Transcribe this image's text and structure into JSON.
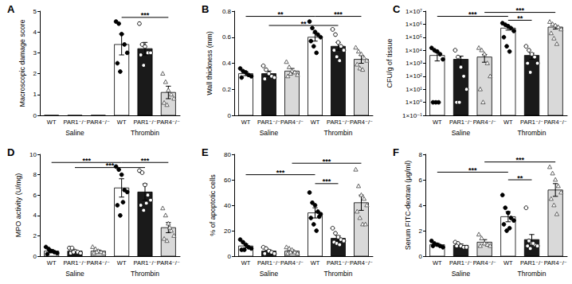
{
  "chart_data": [
    {
      "type": "bar",
      "title": "A",
      "ylabel": "Macroscopic damage score",
      "categories": [
        "WT",
        "PAR1⁻/⁻",
        "PAR4⁻/⁻",
        "WT",
        "PAR1⁻/⁻",
        "PAR4⁻/⁻"
      ],
      "groups": [
        "Saline",
        "Thrombin"
      ],
      "ylim": [
        0,
        5
      ],
      "yticks": [
        0,
        1,
        2,
        3,
        4,
        5
      ],
      "grid": false,
      "series": [
        {
          "type": "bar",
          "values": [
            0,
            0,
            0,
            3.4,
            3.2,
            1.1
          ],
          "errors": [
            0,
            0,
            0,
            0.5,
            0.3,
            0.3
          ],
          "colors": [
            "#ffffff",
            "#1a1a1a",
            "#d9d9d9",
            "#ffffff",
            "#1a1a1a",
            "#d9d9d9"
          ]
        },
        {
          "type": "scatter",
          "marker": "filled_circle",
          "color": "#000000",
          "values": [
            [],
            null,
            null,
            [
              4.5,
              4.4,
              3.9,
              3.4,
              3.0,
              2.5,
              2.1
            ],
            null,
            null
          ]
        },
        {
          "type": "scatter",
          "marker": "open_circle",
          "color": "#000000",
          "values": [
            null,
            [],
            null,
            null,
            [
              4.4,
              3.4,
              3.3,
              3.0,
              3.0,
              2.9,
              2.4
            ],
            null
          ]
        },
        {
          "type": "scatter",
          "marker": "open_triangle",
          "color": "#555555",
          "values": [
            null,
            null,
            [],
            null,
            null,
            [
              2.0,
              1.6,
              1.2,
              1.0,
              0.8,
              0.6,
              0.5
            ]
          ]
        }
      ],
      "annotations": [
        {
          "label": "***",
          "from": 3,
          "to": 5,
          "y": 4.7
        }
      ]
    },
    {
      "type": "bar",
      "title": "B",
      "ylabel": "Wall thickness (mm)",
      "categories": [
        "WT",
        "PAR1⁻/⁻",
        "PAR4⁻/⁻",
        "WT",
        "PAR1⁻/⁻",
        "PAR4⁻/⁻"
      ],
      "groups": [
        "Saline",
        "Thrombin"
      ],
      "ylim": [
        0,
        0.8
      ],
      "yticks": [
        0,
        0.2,
        0.4,
        0.6,
        0.8
      ],
      "grid": false,
      "series": [
        {
          "type": "bar",
          "values": [
            0.32,
            0.32,
            0.34,
            0.6,
            0.53,
            0.43
          ],
          "errors": [
            0.015,
            0.02,
            0.02,
            0.03,
            0.03,
            0.03
          ],
          "colors": [
            "#ffffff",
            "#1a1a1a",
            "#d9d9d9",
            "#ffffff",
            "#1a1a1a",
            "#d9d9d9"
          ]
        },
        {
          "type": "scatter",
          "marker": "filled_circle",
          "color": "#000000",
          "values": [
            [
              0.36,
              0.34,
              0.33,
              0.31,
              0.3,
              0.29
            ],
            null,
            null,
            [
              0.72,
              0.67,
              0.64,
              0.62,
              0.6,
              0.57,
              0.53,
              0.48
            ],
            null,
            null
          ]
        },
        {
          "type": "scatter",
          "marker": "open_circle",
          "color": "#000000",
          "values": [
            null,
            [
              0.38,
              0.35,
              0.32,
              0.3,
              0.29,
              0.28
            ],
            null,
            null,
            [
              0.66,
              0.62,
              0.56,
              0.53,
              0.5,
              0.5,
              0.45,
              0.42
            ],
            null
          ]
        },
        {
          "type": "scatter",
          "marker": "open_triangle",
          "color": "#555555",
          "values": [
            null,
            null,
            [
              0.41,
              0.37,
              0.34,
              0.33,
              0.31,
              0.3,
              0.32
            ],
            null,
            null,
            [
              0.52,
              0.49,
              0.47,
              0.44,
              0.42,
              0.39,
              0.36,
              0.35
            ]
          ]
        }
      ],
      "annotations": [
        {
          "label": "**",
          "from": 0,
          "to": 3,
          "y": 0.76
        },
        {
          "label": "**",
          "from": 1,
          "to": 4,
          "y": 0.69
        },
        {
          "label": "***",
          "from": 3,
          "to": 5,
          "y": 0.76
        }
      ]
    },
    {
      "type": "bar",
      "title": "C",
      "ylabel": "CFU/g of tissue",
      "log": "y",
      "categories": [
        "WT",
        "PAR1⁻/⁻",
        "PAR4⁻/⁻",
        "WT",
        "PAR1⁻/⁻",
        "PAR4⁻/⁻"
      ],
      "groups": [
        "Saline",
        "Thrombin"
      ],
      "ylim": [
        0.1,
        10000000
      ],
      "yticks": [
        {
          "value": 0.1,
          "label": "1×10⁻¹"
        },
        {
          "value": 1,
          "label": "1×10⁰"
        },
        {
          "value": 10,
          "label": "1×10¹"
        },
        {
          "value": 100,
          "label": "1×10²"
        },
        {
          "value": 1000,
          "label": "1×10³"
        },
        {
          "value": 10000,
          "label": "1×10⁴"
        },
        {
          "value": 100000,
          "label": "1×10⁵"
        },
        {
          "value": 1000000,
          "label": "1×10⁶"
        },
        {
          "value": 10000000,
          "label": "1×10⁷"
        }
      ],
      "grid": false,
      "series": [
        {
          "type": "bar",
          "values": [
            4000,
            2000,
            3000,
            500000,
            4000,
            600000
          ],
          "errors": [
            2500,
            1500,
            1800,
            150000,
            2000,
            180000
          ],
          "colors": [
            "#ffffff",
            "#1a1a1a",
            "#d9d9d9",
            "#ffffff",
            "#1a1a1a",
            "#d9d9d9"
          ]
        },
        {
          "type": "scatter",
          "marker": "filled_circle",
          "color": "#000000",
          "values": [
            [
              15000,
              10000,
              8000,
              5000,
              2000,
              1,
              1,
              1
            ],
            null,
            null,
            [
              1200000,
              900000,
              700000,
              500000,
              300000,
              100000,
              20000,
              8000
            ],
            null,
            null
          ]
        },
        {
          "type": "scatter",
          "marker": "open_circle",
          "color": "#000000",
          "values": [
            null,
            [
              10000,
              3000,
              500,
              100,
              10,
              1,
              1
            ],
            null,
            null,
            [
              20000,
              10000,
              5000,
              3000,
              1000,
              1000,
              200
            ],
            null
          ]
        },
        {
          "type": "scatter",
          "marker": "open_triangle",
          "color": "#555555",
          "values": [
            null,
            null,
            [
              15000,
              10000,
              5000,
              1000,
              100,
              10,
              1
            ],
            null,
            null,
            [
              1500000,
              1000000,
              800000,
              600000,
              400000,
              200000,
              80000,
              30000
            ]
          ]
        }
      ],
      "annotations": [
        {
          "label": "***",
          "from": 0,
          "to": 3,
          "y": 4000000
        },
        {
          "label": "**",
          "from": 3,
          "to": 4,
          "y": 2000000
        },
        {
          "label": "***",
          "from": 2,
          "to": 5,
          "y": 8000000
        }
      ]
    },
    {
      "type": "bar",
      "title": "D",
      "ylabel": "MPO activity (U/mg)",
      "categories": [
        "WT",
        "PAR1⁻/⁻",
        "PAR4⁻/⁻",
        "WT",
        "PAR1⁻/⁻",
        "PAR4⁻/⁻"
      ],
      "groups": [
        "Saline",
        "Thrombin"
      ],
      "ylim": [
        0,
        10
      ],
      "yticks": [
        0,
        2,
        4,
        6,
        8,
        10
      ],
      "grid": false,
      "series": [
        {
          "type": "bar",
          "values": [
            0.5,
            0.5,
            0.5,
            6.7,
            6.3,
            2.8
          ],
          "errors": [
            0.15,
            0.1,
            0.1,
            0.9,
            0.8,
            0.5
          ],
          "colors": [
            "#ffffff",
            "#1a1a1a",
            "#d9d9d9",
            "#ffffff",
            "#1a1a1a",
            "#d9d9d9"
          ]
        },
        {
          "type": "scatter",
          "marker": "filled_circle",
          "color": "#000000",
          "values": [
            [
              0.9,
              0.7,
              0.5,
              0.4,
              0.3,
              0.2,
              0.5
            ],
            null,
            null,
            [
              8.8,
              8.5,
              8.0,
              6.5,
              6.3,
              5.0,
              4.0,
              5.3
            ],
            null,
            null
          ]
        },
        {
          "type": "scatter",
          "marker": "open_circle",
          "color": "#000000",
          "values": [
            null,
            [
              0.8,
              0.8,
              0.5,
              0.4,
              0.3,
              0.3,
              0.4
            ],
            null,
            null,
            [
              8.4,
              8.2,
              7.0,
              6.0,
              5.5,
              5.0,
              4.5,
              5.2
            ],
            null
          ]
        },
        {
          "type": "scatter",
          "marker": "open_triangle",
          "color": "#555555",
          "values": [
            null,
            null,
            [
              0.9,
              0.7,
              0.5,
              0.4,
              0.3,
              0.3,
              0.4
            ],
            null,
            null,
            [
              4.7,
              4.0,
              3.2,
              2.5,
              2.0,
              1.7,
              1.5,
              2.8
            ]
          ]
        }
      ],
      "annotations": [
        {
          "label": "***",
          "from": 0,
          "to": 3,
          "y": 9.2
        },
        {
          "label": "***",
          "from": 1,
          "to": 4,
          "y": 8.7
        },
        {
          "label": "***",
          "from": 3,
          "to": 5,
          "y": 9.2
        }
      ]
    },
    {
      "type": "bar",
      "title": "E",
      "ylabel": "% of apoptotic cells",
      "categories": [
        "WT",
        "PAR1⁻/⁻",
        "PAR4⁻/⁻",
        "WT",
        "PAR1⁻/⁻",
        "PAR4⁻/⁻"
      ],
      "groups": [
        "Saline",
        "Thrombin"
      ],
      "ylim": [
        0,
        80
      ],
      "yticks": [
        0,
        20,
        40,
        60,
        80
      ],
      "grid": false,
      "series": [
        {
          "type": "bar",
          "values": [
            8,
            4,
            4,
            34,
            14,
            42
          ],
          "errors": [
            1.5,
            1,
            1,
            4,
            2,
            6
          ],
          "colors": [
            "#ffffff",
            "#1a1a1a",
            "#d9d9d9",
            "#ffffff",
            "#1a1a1a",
            "#d9d9d9"
          ]
        },
        {
          "type": "scatter",
          "marker": "filled_circle",
          "color": "#000000",
          "values": [
            [
              13,
              11,
              9,
              7,
              6,
              5,
              5
            ],
            null,
            null,
            [
              50,
              42,
              40,
              35,
              33,
              30,
              25,
              20,
              31
            ],
            null,
            null
          ]
        },
        {
          "type": "scatter",
          "marker": "open_circle",
          "color": "#000000",
          "values": [
            null,
            [
              7,
              6,
              4,
              3,
              2,
              2
            ],
            null,
            null,
            [
              22,
              18,
              15,
              13,
              12,
              11,
              10,
              9
            ],
            null
          ]
        },
        {
          "type": "scatter",
          "marker": "open_triangle",
          "color": "#555555",
          "values": [
            null,
            null,
            [
              7,
              6,
              5,
              3,
              2,
              2,
              3
            ],
            null,
            null,
            [
              68,
              55,
              48,
              45,
              40,
              35,
              30,
              25,
              25
            ]
          ]
        }
      ],
      "annotations": [
        {
          "label": "***",
          "from": 0,
          "to": 3,
          "y": 64
        },
        {
          "label": "***",
          "from": 3,
          "to": 4,
          "y": 57
        },
        {
          "label": "***",
          "from": 2,
          "to": 5,
          "y": 73
        }
      ]
    },
    {
      "type": "bar",
      "title": "F",
      "ylabel": "Serum FITC-dextran (μg/ml)",
      "categories": [
        "WT",
        "PAR1⁻/⁻",
        "PAR4⁻/⁻",
        "WT",
        "PAR1⁻/⁻",
        "PAR4⁻/⁻"
      ],
      "groups": [
        "Saline",
        "Thrombin"
      ],
      "ylim": [
        0,
        8
      ],
      "yticks": [
        0,
        2,
        4,
        6,
        8
      ],
      "grid": false,
      "series": [
        {
          "type": "bar",
          "values": [
            0.9,
            0.85,
            1.1,
            3.1,
            1.3,
            5.2
          ],
          "errors": [
            0.1,
            0.1,
            0.2,
            0.4,
            0.4,
            0.5
          ],
          "colors": [
            "#ffffff",
            "#1a1a1a",
            "#d9d9d9",
            "#ffffff",
            "#1a1a1a",
            "#d9d9d9"
          ]
        },
        {
          "type": "scatter",
          "marker": "filled_circle",
          "color": "#000000",
          "values": [
            [
              1.2,
              1.0,
              0.9,
              0.8,
              0.7,
              0.8
            ],
            null,
            null,
            [
              4.8,
              3.8,
              3.4,
              3.0,
              2.8,
              2.5,
              2.0,
              2.2
            ],
            null,
            null
          ]
        },
        {
          "type": "scatter",
          "marker": "open_circle",
          "color": "#000000",
          "values": [
            null,
            [
              1.1,
              1.0,
              0.8,
              0.7,
              0.7,
              0.8
            ],
            null,
            null,
            [
              3.8,
              1.2,
              1.0,
              0.9,
              0.8,
              0.8,
              0.6,
              1.0
            ],
            null
          ]
        },
        {
          "type": "scatter",
          "marker": "open_triangle",
          "color": "#555555",
          "values": [
            null,
            null,
            [
              1.7,
              1.4,
              1.0,
              0.9,
              0.8,
              0.8
            ],
            null,
            null,
            [
              7.0,
              6.5,
              6.0,
              5.5,
              5.0,
              4.5,
              4.0,
              3.3
            ]
          ]
        }
      ],
      "annotations": [
        {
          "label": "***",
          "from": 0,
          "to": 3,
          "y": 6.6
        },
        {
          "label": "**",
          "from": 3,
          "to": 4,
          "y": 6.0
        },
        {
          "label": "***",
          "from": 2,
          "to": 5,
          "y": 7.4
        }
      ]
    }
  ]
}
